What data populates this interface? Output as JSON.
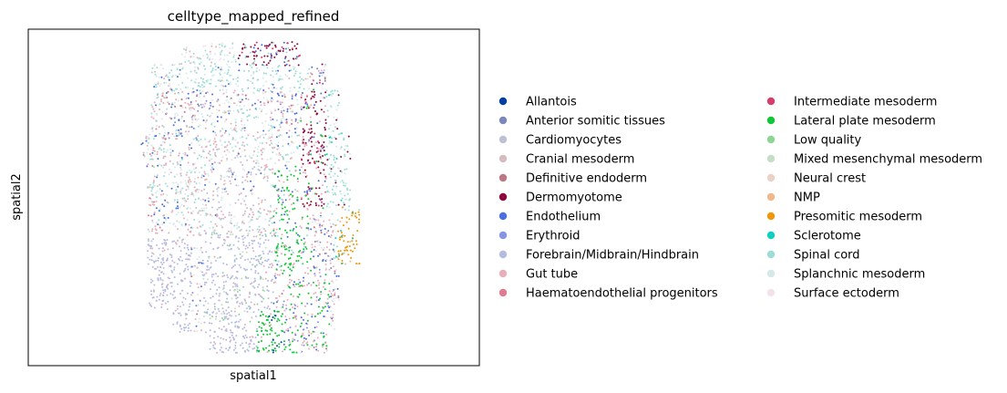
{
  "chart_data": {
    "type": "scatter",
    "title": "celltype_mapped_refined",
    "xlabel": "spatial1",
    "ylabel": "spatial2",
    "legend_position": "right",
    "axis_ticks": false,
    "categories": [
      {
        "name": "Allantois",
        "color": "#023fa5"
      },
      {
        "name": "Anterior somitic tissues",
        "color": "#7d87b9"
      },
      {
        "name": "Cardiomyocytes",
        "color": "#bec1d4"
      },
      {
        "name": "Cranial mesoderm",
        "color": "#d6bcc0"
      },
      {
        "name": "Definitive endoderm",
        "color": "#bb7784"
      },
      {
        "name": "Dermomyotome",
        "color": "#8e063b"
      },
      {
        "name": "Endothelium",
        "color": "#4a6fe3"
      },
      {
        "name": "Erythroid",
        "color": "#8595e1"
      },
      {
        "name": "Forebrain/Midbrain/Hindbrain",
        "color": "#b5bbe3"
      },
      {
        "name": "Gut tube",
        "color": "#e6afb9"
      },
      {
        "name": "Haematoendothelial progenitors",
        "color": "#e07b91"
      },
      {
        "name": "Intermediate mesoderm",
        "color": "#d33f6a"
      },
      {
        "name": "Lateral plate mesoderm",
        "color": "#11c638"
      },
      {
        "name": "Low quality",
        "color": "#8dd593"
      },
      {
        "name": "Mixed mesenchymal mesoderm",
        "color": "#c6dec7"
      },
      {
        "name": "Neural crest",
        "color": "#ead3c6"
      },
      {
        "name": "NMP",
        "color": "#f0b98d"
      },
      {
        "name": "Presomitic mesoderm",
        "color": "#ef9708"
      },
      {
        "name": "Sclerotome",
        "color": "#0fcfc0"
      },
      {
        "name": "Spinal cord",
        "color": "#9cded6"
      },
      {
        "name": "Splanchnic mesoderm",
        "color": "#d5eae7"
      },
      {
        "name": "Surface ectoderm",
        "color": "#f3e1eb"
      }
    ]
  }
}
